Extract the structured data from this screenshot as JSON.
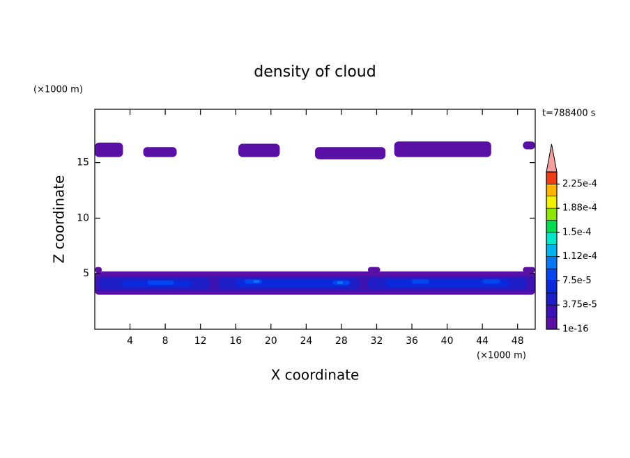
{
  "chart_data": {
    "type": "contour",
    "title": "density of cloud",
    "xlabel": "X coordinate",
    "ylabel": "Z coordinate",
    "xunit": "(×1000 m)",
    "yunit": "(×1000 m)",
    "annotation": "t=788400 s",
    "xlim": [
      0,
      50
    ],
    "ylim": [
      0,
      19.8
    ],
    "xticks": [
      4,
      8,
      12,
      16,
      20,
      24,
      28,
      32,
      36,
      40,
      44,
      48
    ],
    "yticks": [
      5,
      10,
      15
    ],
    "levels": [
      1e-16,
      1.875e-05,
      3.75e-05,
      5.625e-05,
      7.5e-05,
      9.375e-05,
      0.0001125,
      0.00013125,
      0.00015,
      0.00016875,
      0.0001875,
      0.00020625,
      0.000225,
      0.00024375
    ],
    "colors": [
      "#5a0fa5",
      "#3c14b4",
      "#1e1ec8",
      "#0a28dc",
      "#0046f0",
      "#0a78f5",
      "#00b4f0",
      "#00e6c8",
      "#00dc50",
      "#8ce600",
      "#f0f000",
      "#ffb400",
      "#f03c14"
    ],
    "over_color": "#f4a0a0",
    "colorbar_ticks": [
      {
        "value": 1e-16,
        "label": "1e-16"
      },
      {
        "value": 3.75e-05,
        "label": "3.75e-5"
      },
      {
        "value": 7.5e-05,
        "label": "7.5e-5"
      },
      {
        "value": 0.0001125,
        "label": "1.12e-4"
      },
      {
        "value": 0.00015,
        "label": "1.5e-4"
      },
      {
        "value": 0.0001875,
        "label": "1.88e-4"
      },
      {
        "value": 0.000225,
        "label": "2.25e-4"
      }
    ],
    "regions": [
      {
        "x": [
          0,
          3.2
        ],
        "z": [
          15.5,
          16.8
        ],
        "value": 1e-05
      },
      {
        "x": [
          5.5,
          9.3
        ],
        "z": [
          15.5,
          16.4
        ],
        "value": 1e-05
      },
      {
        "x": [
          16.3,
          21
        ],
        "z": [
          15.5,
          16.7
        ],
        "value": 1e-05
      },
      {
        "x": [
          25,
          33
        ],
        "z": [
          15.3,
          16.4
        ],
        "value": 1e-05
      },
      {
        "x": [
          34,
          45
        ],
        "z": [
          15.5,
          16.9
        ],
        "value": 1e-05
      },
      {
        "x": [
          48.6,
          50
        ],
        "z": [
          16.2,
          16.9
        ],
        "value": 1e-05
      },
      {
        "x": [
          0,
          50
        ],
        "z": [
          3.1,
          5.2
        ],
        "value": 1e-05
      },
      {
        "x": [
          31,
          32.4
        ],
        "z": [
          5.1,
          5.6
        ],
        "value": 1e-05
      },
      {
        "x": [
          48.6,
          50
        ],
        "z": [
          5.1,
          5.6
        ],
        "value": 1e-05
      },
      {
        "x": [
          0,
          0.8
        ],
        "z": [
          5.1,
          5.6
        ],
        "value": 1e-05
      },
      {
        "x": [
          0,
          50
        ],
        "z": [
          3.4,
          4.8
        ],
        "value": 2.5e-05
      },
      {
        "x": [
          0.5,
          13
        ],
        "z": [
          3.6,
          4.6
        ],
        "value": 4.5e-05
      },
      {
        "x": [
          14,
          30
        ],
        "z": [
          3.6,
          4.6
        ],
        "value": 4.5e-05
      },
      {
        "x": [
          31,
          49
        ],
        "z": [
          3.6,
          4.6
        ],
        "value": 4.5e-05
      },
      {
        "x": [
          3,
          11
        ],
        "z": [
          3.8,
          4.4
        ],
        "value": 6.5e-05
      },
      {
        "x": [
          16,
          29
        ],
        "z": [
          3.8,
          4.5
        ],
        "value": 6.5e-05
      },
      {
        "x": [
          33,
          47
        ],
        "z": [
          3.8,
          4.5
        ],
        "value": 6.5e-05
      },
      {
        "x": [
          6,
          9
        ],
        "z": [
          4.0,
          4.4
        ],
        "value": 8.5e-05
      },
      {
        "x": [
          17,
          19
        ],
        "z": [
          4.1,
          4.5
        ],
        "value": 8.5e-05
      },
      {
        "x": [
          27,
          29
        ],
        "z": [
          4.0,
          4.4
        ],
        "value": 8.5e-05
      },
      {
        "x": [
          36,
          38
        ],
        "z": [
          4.1,
          4.5
        ],
        "value": 8.5e-05
      },
      {
        "x": [
          44,
          46
        ],
        "z": [
          4.1,
          4.5
        ],
        "value": 8.5e-05
      },
      {
        "x": [
          18,
          18.7
        ],
        "z": [
          4.2,
          4.4
        ],
        "value": 0.000105
      },
      {
        "x": [
          27.5,
          28.2
        ],
        "z": [
          4.1,
          4.3
        ],
        "value": 0.000105
      }
    ]
  }
}
